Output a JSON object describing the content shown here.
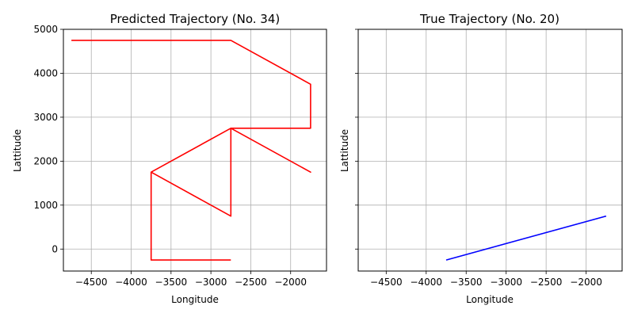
{
  "chart_data": [
    {
      "type": "line",
      "title": "Predicted Trajectory (No. 34)",
      "xlabel": "Longitude",
      "ylabel": "Lattitude",
      "xlim": [
        -4850,
        -1550
      ],
      "ylim": [
        -500,
        5000
      ],
      "xticks": [
        -4500,
        -4000,
        -3500,
        -3000,
        -2500,
        -2000
      ],
      "xtick_labels": [
        "−4500",
        "−4000",
        "−3500",
        "−3000",
        "−2500",
        "−2000"
      ],
      "yticks": [
        0,
        1000,
        2000,
        3000,
        4000,
        5000
      ],
      "ytick_labels": [
        "0",
        "1000",
        "2000",
        "3000",
        "4000",
        "5000"
      ],
      "grid": true,
      "series": [
        {
          "color": "#ff0000",
          "x": [
            -4750,
            -2750,
            -1750,
            -1750,
            -2750,
            -1750,
            -2750,
            -2750,
            -3750,
            -2750,
            -3750,
            -3750,
            -2750
          ],
          "y": [
            4750,
            4750,
            3750,
            2750,
            2750,
            1750,
            2750,
            750,
            1750,
            2750,
            1750,
            -250,
            -250
          ]
        }
      ]
    },
    {
      "type": "line",
      "title": "True Trajectory (No. 20)",
      "xlabel": "Longitude",
      "ylabel": "Lattitude",
      "xlim": [
        -4850,
        -1550
      ],
      "ylim": [
        -500,
        5000
      ],
      "xticks": [
        -4500,
        -4000,
        -3500,
        -3000,
        -2500,
        -2000
      ],
      "xtick_labels": [
        "−4500",
        "−4000",
        "−3500",
        "−3000",
        "−2500",
        "−2000"
      ],
      "yticks": [
        0,
        1000,
        2000,
        3000,
        4000,
        5000
      ],
      "ytick_labels": [],
      "grid": true,
      "series": [
        {
          "color": "#0000ff",
          "x": [
            -3750,
            -1750
          ],
          "y": [
            -250,
            750
          ]
        }
      ]
    }
  ]
}
